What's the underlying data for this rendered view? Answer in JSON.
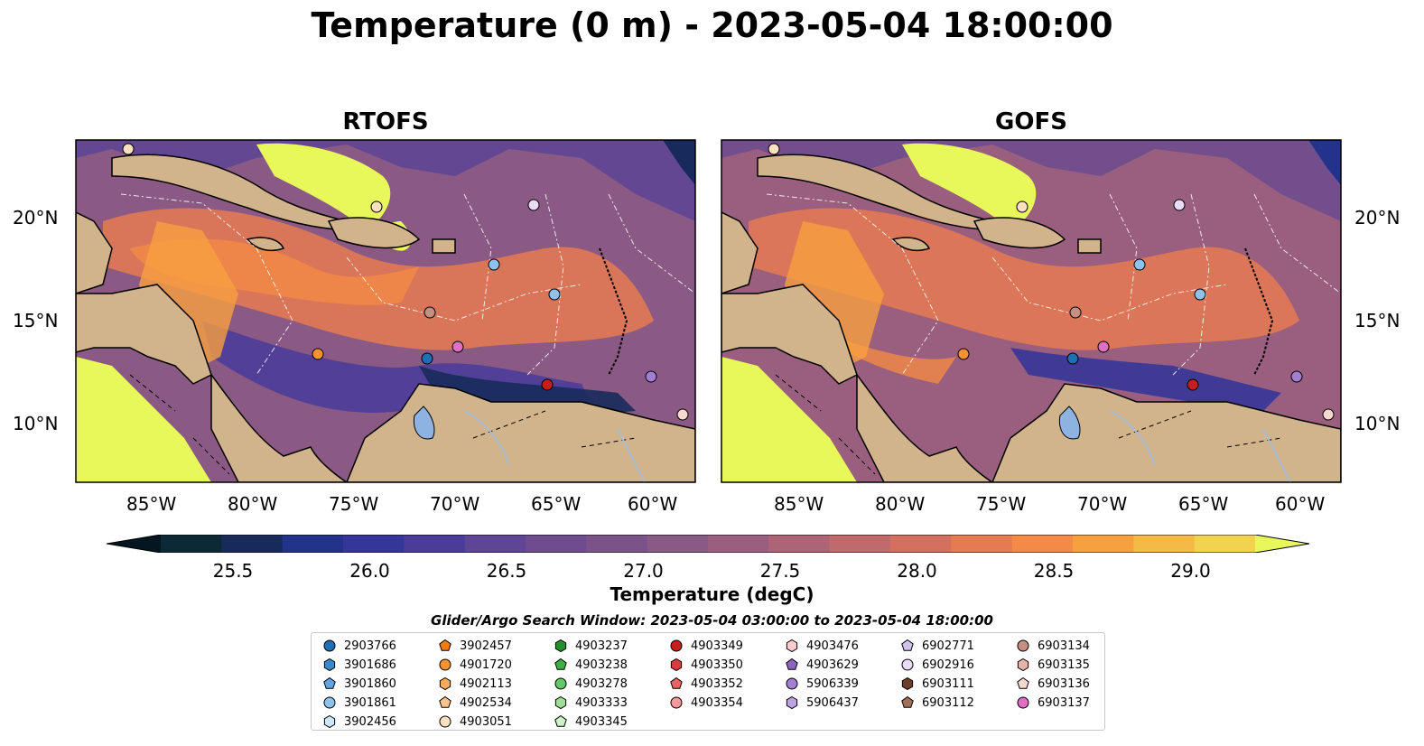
{
  "title": "Temperature (0 m) - 2023-05-04 18:00:00",
  "panels": [
    {
      "title": "RTOFS"
    },
    {
      "title": "GOFS"
    }
  ],
  "axes": {
    "lat_ticks": [
      "20°N",
      "15°N",
      "10°N"
    ],
    "lon_ticks": [
      "85°W",
      "80°W",
      "75°W",
      "70°W",
      "65°W",
      "60°W"
    ]
  },
  "colorbar": {
    "label": "Temperature (degC)",
    "ticks": [
      "25.5",
      "26.0",
      "26.5",
      "27.0",
      "27.5",
      "28.0",
      "28.5",
      "29.0"
    ],
    "range": [
      25.25,
      29.25
    ],
    "colors": [
      "#0b2a36",
      "#172a5b",
      "#23328a",
      "#36369a",
      "#4b3c9a",
      "#5e4595",
      "#6e4c8f",
      "#7c528a",
      "#8a5984",
      "#9a5e7e",
      "#ad6476",
      "#c16a6c",
      "#d57060",
      "#e67a51",
      "#f38a45",
      "#f7a040",
      "#f5b946",
      "#f1d251"
    ],
    "extend_colors": {
      "low": "#04161f",
      "high": "#e8f75a"
    }
  },
  "legend": {
    "title": "Glider/Argo Search Window: 2023-05-04 03:00:00 to 2023-05-04 18:00:00",
    "columns": [
      [
        {
          "id": "2903766",
          "marker": "circle",
          "color": "#1f6fb4"
        },
        {
          "id": "3901686",
          "marker": "hexagon",
          "color": "#3a87c9"
        },
        {
          "id": "3901860",
          "marker": "pentagon",
          "color": "#5fa6e0"
        },
        {
          "id": "3901861",
          "marker": "circle",
          "color": "#8ec2ec"
        },
        {
          "id": "3902456",
          "marker": "hexagon",
          "color": "#cde6f8"
        }
      ],
      [
        {
          "id": "3902457",
          "marker": "pentagon",
          "color": "#f27a10"
        },
        {
          "id": "4901720",
          "marker": "circle",
          "color": "#f7922e"
        },
        {
          "id": "4902113",
          "marker": "hexagon",
          "color": "#f9aa5a"
        },
        {
          "id": "4902534",
          "marker": "pentagon",
          "color": "#fbc38c"
        },
        {
          "id": "4903051",
          "marker": "circle",
          "color": "#fde0c2"
        }
      ],
      [
        {
          "id": "4903237",
          "marker": "hexagon",
          "color": "#23912b"
        },
        {
          "id": "4903238",
          "marker": "pentagon",
          "color": "#3fae45"
        },
        {
          "id": "4903278",
          "marker": "circle",
          "color": "#66c76a"
        },
        {
          "id": "4903333",
          "marker": "hexagon",
          "color": "#9edc98"
        },
        {
          "id": "4903345",
          "marker": "pentagon",
          "color": "#cdf2c6"
        }
      ],
      [
        {
          "id": "4903349",
          "marker": "circle",
          "color": "#c81d1d"
        },
        {
          "id": "4903350",
          "marker": "hexagon",
          "color": "#dc3b3b"
        },
        {
          "id": "4903352",
          "marker": "pentagon",
          "color": "#ea6262"
        },
        {
          "id": "4903354",
          "marker": "circle",
          "color": "#f49a9a"
        }
      ],
      [
        {
          "id": "4903476",
          "marker": "hexagon",
          "color": "#fbcccc"
        },
        {
          "id": "4903629",
          "marker": "pentagon",
          "color": "#8e63c0"
        },
        {
          "id": "5906339",
          "marker": "circle",
          "color": "#a27fd0"
        },
        {
          "id": "5906437",
          "marker": "hexagon",
          "color": "#bca2e0"
        }
      ],
      [
        {
          "id": "6902771",
          "marker": "pentagon",
          "color": "#d3c2ee"
        },
        {
          "id": "6902916",
          "marker": "circle",
          "color": "#e8dcf8"
        },
        {
          "id": "6903111",
          "marker": "hexagon",
          "color": "#6b3f2a"
        },
        {
          "id": "6903112",
          "marker": "pentagon",
          "color": "#a0705a"
        }
      ],
      [
        {
          "id": "6903134",
          "marker": "circle",
          "color": "#c59082"
        },
        {
          "id": "6903135",
          "marker": "hexagon",
          "color": "#e3b5a8"
        },
        {
          "id": "6903136",
          "marker": "pentagon",
          "color": "#f7d9cf"
        },
        {
          "id": "6903137",
          "marker": "circle",
          "color": "#de6fc4"
        }
      ]
    ]
  }
}
